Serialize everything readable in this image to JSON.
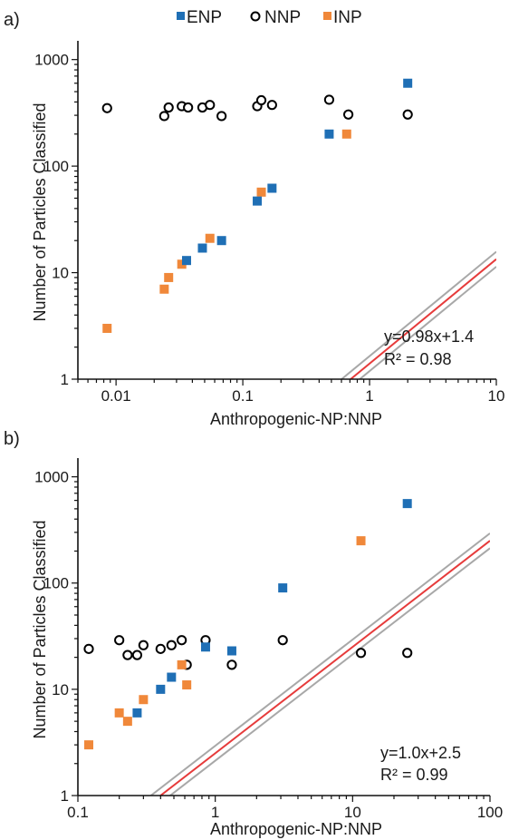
{
  "legend": [
    {
      "name": "ENP",
      "marker": "square",
      "color": "#1f6fb5"
    },
    {
      "name": "NNP",
      "marker": "circle",
      "color": "#000000"
    },
    {
      "name": "INP",
      "marker": "square",
      "color": "#f0883a"
    }
  ],
  "chart_data": [
    {
      "type": "scatter",
      "panel_label": "a)",
      "xlabel": "Anthropogenic-NP:NNP",
      "ylabel": "Number of Particles Classified",
      "x_scale": "log",
      "y_scale": "log",
      "xlim": [
        0.005,
        10
      ],
      "ylim": [
        1,
        1500
      ],
      "x_ticks": [
        0.01,
        0.1,
        1,
        10
      ],
      "x_tick_labels": [
        "0.01",
        "0.1",
        "1",
        "10"
      ],
      "y_ticks": [
        1,
        10,
        100,
        1000
      ],
      "y_tick_labels": [
        "1",
        "10",
        "100",
        "1000"
      ],
      "fit": {
        "slope": 0.98,
        "intercept": 1.4,
        "color": "#e63b3b",
        "ci_color": "#a8a8a8",
        "ci_offset_decades": 0.07
      },
      "annotation": [
        "y=0.98x+1.4",
        "R² = 0.98"
      ],
      "series": [
        {
          "name": "ENP",
          "marker": "square",
          "color": "#1f6fb5",
          "points": [
            [
              0.036,
              13
            ],
            [
              0.048,
              17
            ],
            [
              0.068,
              20
            ],
            [
              0.13,
              47
            ],
            [
              0.17,
              62
            ],
            [
              0.48,
              200
            ],
            [
              2.0,
              600
            ]
          ]
        },
        {
          "name": "NNP",
          "marker": "circle",
          "color": "#000000",
          "points": [
            [
              0.0085,
              350
            ],
            [
              0.024,
              295
            ],
            [
              0.026,
              355
            ],
            [
              0.033,
              365
            ],
            [
              0.037,
              355
            ],
            [
              0.048,
              355
            ],
            [
              0.055,
              375
            ],
            [
              0.068,
              295
            ],
            [
              0.13,
              365
            ],
            [
              0.14,
              415
            ],
            [
              0.17,
              375
            ],
            [
              0.48,
              420
            ],
            [
              0.68,
              305
            ],
            [
              2.0,
              305
            ]
          ]
        },
        {
          "name": "INP",
          "marker": "square",
          "color": "#f0883a",
          "points": [
            [
              0.0085,
              3
            ],
            [
              0.024,
              7
            ],
            [
              0.026,
              9
            ],
            [
              0.033,
              12
            ],
            [
              0.055,
              21
            ],
            [
              0.14,
              57
            ],
            [
              0.66,
              200
            ]
          ]
        }
      ]
    },
    {
      "type": "scatter",
      "panel_label": "b)",
      "xlabel": "Anthropogenic-NP:NNP",
      "ylabel": "Number of Particles Classified",
      "x_scale": "log",
      "y_scale": "log",
      "xlim": [
        0.1,
        100
      ],
      "ylim": [
        1,
        1500
      ],
      "x_ticks": [
        0.1,
        1,
        10,
        100
      ],
      "x_tick_labels": [
        "0.1",
        "1",
        "10",
        "100"
      ],
      "y_ticks": [
        1,
        10,
        100,
        1000
      ],
      "y_tick_labels": [
        "1",
        "10",
        "100",
        "1000"
      ],
      "fit": {
        "slope": 1.0,
        "intercept": 2.5,
        "color": "#e63b3b",
        "ci_color": "#a8a8a8",
        "ci_offset_decades": 0.07
      },
      "annotation": [
        "y=1.0x+2.5",
        "R² = 0.99"
      ],
      "series": [
        {
          "name": "ENP",
          "marker": "square",
          "color": "#1f6fb5",
          "points": [
            [
              0.27,
              6
            ],
            [
              0.4,
              10
            ],
            [
              0.48,
              13
            ],
            [
              0.85,
              25
            ],
            [
              1.32,
              23
            ],
            [
              3.1,
              90
            ],
            [
              25,
              560
            ]
          ]
        },
        {
          "name": "NNP",
          "marker": "circle",
          "color": "#000000",
          "points": [
            [
              0.12,
              24
            ],
            [
              0.2,
              29
            ],
            [
              0.23,
              21
            ],
            [
              0.27,
              21
            ],
            [
              0.3,
              26
            ],
            [
              0.4,
              24
            ],
            [
              0.48,
              26
            ],
            [
              0.57,
              29
            ],
            [
              0.62,
              17
            ],
            [
              0.85,
              29
            ],
            [
              1.32,
              17
            ],
            [
              3.1,
              29
            ],
            [
              11.5,
              22
            ],
            [
              25,
              22
            ]
          ]
        },
        {
          "name": "INP",
          "marker": "square",
          "color": "#f0883a",
          "points": [
            [
              0.12,
              3
            ],
            [
              0.2,
              6
            ],
            [
              0.23,
              5
            ],
            [
              0.3,
              8
            ],
            [
              0.57,
              17
            ],
            [
              0.62,
              11
            ],
            [
              11.5,
              250
            ]
          ]
        }
      ]
    }
  ]
}
